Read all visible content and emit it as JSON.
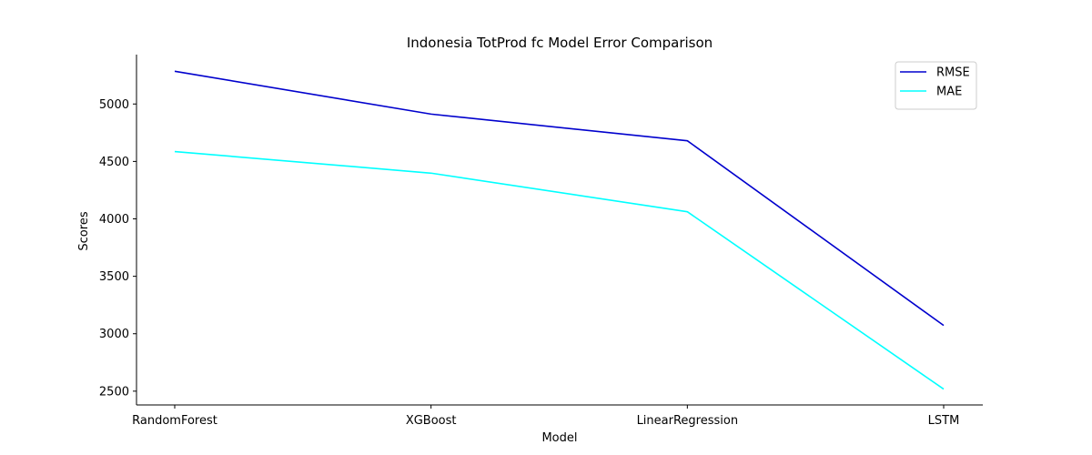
{
  "chart_data": {
    "type": "line",
    "title": "Indonesia TotProd fc Model Error Comparison",
    "xlabel": "Model",
    "ylabel": "Scores",
    "categories": [
      "RandomForest",
      "XGBoost",
      "LinearRegression",
      "LSTM"
    ],
    "series": [
      {
        "name": "RMSE",
        "color": "#0000cd",
        "values": [
          5285,
          4912,
          4680,
          3072
        ]
      },
      {
        "name": "MAE",
        "color": "#00ffff",
        "values": [
          4586,
          4398,
          4062,
          2518
        ]
      }
    ],
    "ylim": [
      2380,
      5430
    ],
    "yticks": [
      2500,
      3000,
      3500,
      4000,
      4500,
      5000
    ],
    "grid": false,
    "legend_position": "top-right"
  }
}
